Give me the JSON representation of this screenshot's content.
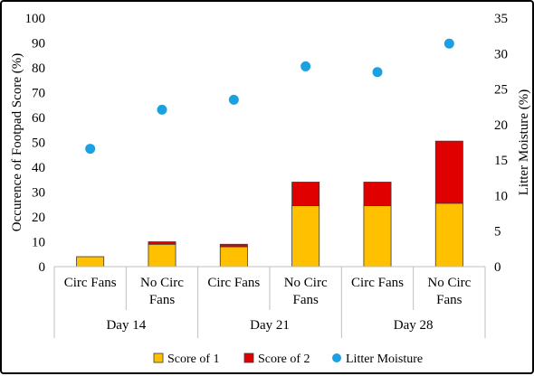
{
  "chart_data": {
    "type": "bar",
    "groups": [
      "Day 14",
      "Day 21",
      "Day 28"
    ],
    "categories": [
      "Circ Fans",
      "No Circ Fans",
      "Circ Fans",
      "No Circ Fans",
      "Circ Fans",
      "No Circ Fans"
    ],
    "category_lines": [
      [
        "Circ Fans"
      ],
      [
        "No Circ",
        "Fans"
      ],
      [
        "Circ Fans"
      ],
      [
        "No Circ",
        "Fans"
      ],
      [
        "Circ Fans"
      ],
      [
        "No Circ",
        "Fans"
      ]
    ],
    "group_of_category": [
      0,
      0,
      1,
      1,
      2,
      2
    ],
    "series": [
      {
        "name": "Score of 1",
        "kind": "bar",
        "axis": "left",
        "color": "#FFC000",
        "values": [
          4,
          9,
          8,
          24.5,
          24.5,
          25.5
        ]
      },
      {
        "name": "Score of 2",
        "kind": "bar",
        "axis": "left",
        "color": "#E00000",
        "values": [
          0,
          1,
          1,
          9.5,
          9.5,
          25
        ]
      },
      {
        "name": "Litter Moisture",
        "kind": "scatter",
        "axis": "right",
        "color": "#1BA1E2",
        "values": [
          16.6,
          22.1,
          23.5,
          28.2,
          27.4,
          31.4
        ]
      }
    ],
    "ylabel": "Occurence of Footpad Score (%)",
    "y2label": "Litter Moisture (%)",
    "ylim": [
      0,
      100
    ],
    "yticks": [
      0,
      10,
      20,
      30,
      40,
      50,
      60,
      70,
      80,
      90,
      100
    ],
    "y2lim": [
      0,
      35
    ],
    "y2ticks": [
      0,
      5,
      10,
      15,
      20,
      25,
      30,
      35
    ],
    "grid": false,
    "legend_position": "bottom",
    "axis_color": "#BFBFBF"
  }
}
